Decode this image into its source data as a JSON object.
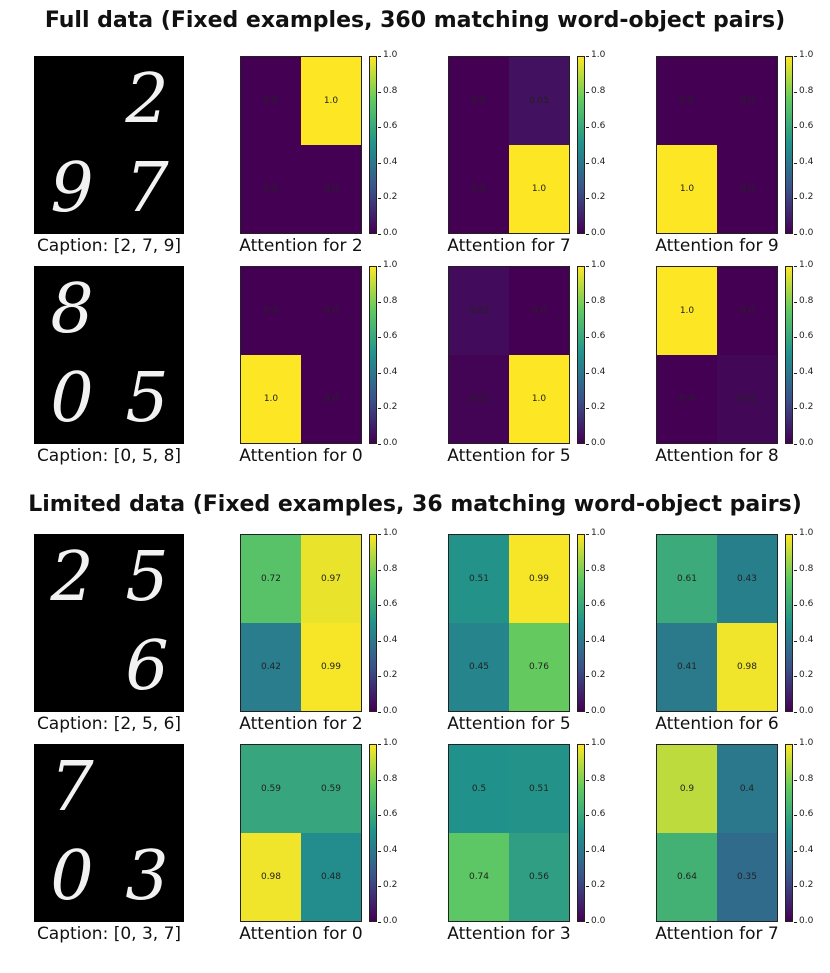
{
  "titles": [
    "Full data (Fixed examples, 360 matching word-object pairs)",
    "Limited data (Fixed examples, 36 matching word-object pairs)"
  ],
  "colorbar_ticks": [
    "1.0",
    "0.8",
    "0.6",
    "0.4",
    "0.2",
    "0.0"
  ],
  "chart_data": [
    {
      "type": "heatmap",
      "rows": [
        {
          "caption": "Caption: [2, 7, 9]",
          "digits": [
            [
              "",
              "2"
            ],
            [
              "9",
              "7"
            ]
          ],
          "maps": [
            {
              "title": "Attention for 2",
              "values": [
                [
                  0.0,
                  1.0
                ],
                [
                  0.0,
                  0.0
                ]
              ],
              "labels": [
                [
                  "0.0",
                  "1.0"
                ],
                [
                  "0.0",
                  "0.0"
                ]
              ]
            },
            {
              "title": "Attention for 7",
              "values": [
                [
                  0.0,
                  0.05
                ],
                [
                  0.0,
                  1.0
                ]
              ],
              "labels": [
                [
                  "0.0",
                  "0.05"
                ],
                [
                  "0.0",
                  "1.0"
                ]
              ]
            },
            {
              "title": "Attention for 9",
              "values": [
                [
                  0.0,
                  0.0
                ],
                [
                  1.0,
                  0.0
                ]
              ],
              "labels": [
                [
                  "0.0",
                  "0.0"
                ],
                [
                  "1.0",
                  "0.0"
                ]
              ]
            }
          ]
        },
        {
          "caption": "Caption: [0, 5, 8]",
          "digits": [
            [
              "8",
              ""
            ],
            [
              "0",
              "5"
            ]
          ],
          "maps": [
            {
              "title": "Attention for 0",
              "values": [
                [
                  0.0,
                  0.0
                ],
                [
                  1.0,
                  0.0
                ]
              ],
              "labels": [
                [
                  "0.0",
                  "0.0"
                ],
                [
                  "1.0",
                  "0.0"
                ]
              ]
            },
            {
              "title": "Attention for 5",
              "values": [
                [
                  0.03,
                  0.0
                ],
                [
                  0.01,
                  1.0
                ]
              ],
              "labels": [
                [
                  "0.03",
                  "0.0"
                ],
                [
                  "0.01",
                  "1.0"
                ]
              ]
            },
            {
              "title": "Attention for 8",
              "values": [
                [
                  1.0,
                  0.0
                ],
                [
                  0.0,
                  0.02
                ]
              ],
              "labels": [
                [
                  "1.0",
                  "0.0"
                ],
                [
                  "0.0",
                  "0.02"
                ]
              ]
            }
          ]
        }
      ]
    },
    {
      "type": "heatmap",
      "rows": [
        {
          "caption": "Caption: [2, 5, 6]",
          "digits": [
            [
              "2",
              "5"
            ],
            [
              "",
              "6"
            ]
          ],
          "maps": [
            {
              "title": "Attention for 2",
              "values": [
                [
                  0.72,
                  0.97
                ],
                [
                  0.42,
                  0.99
                ]
              ],
              "labels": [
                [
                  "0.72",
                  "0.97"
                ],
                [
                  "0.42",
                  "0.99"
                ]
              ]
            },
            {
              "title": "Attention for 5",
              "values": [
                [
                  0.51,
                  0.99
                ],
                [
                  0.45,
                  0.76
                ]
              ],
              "labels": [
                [
                  "0.51",
                  "0.99"
                ],
                [
                  "0.45",
                  "0.76"
                ]
              ]
            },
            {
              "title": "Attention for 6",
              "values": [
                [
                  0.61,
                  0.43
                ],
                [
                  0.41,
                  0.98
                ]
              ],
              "labels": [
                [
                  "0.61",
                  "0.43"
                ],
                [
                  "0.41",
                  "0.98"
                ]
              ]
            }
          ]
        },
        {
          "caption": "Caption: [0, 3, 7]",
          "digits": [
            [
              "7",
              ""
            ],
            [
              "0",
              "3"
            ]
          ],
          "maps": [
            {
              "title": "Attention for 0",
              "values": [
                [
                  0.59,
                  0.59
                ],
                [
                  0.98,
                  0.48
                ]
              ],
              "labels": [
                [
                  "0.59",
                  "0.59"
                ],
                [
                  "0.98",
                  "0.48"
                ]
              ]
            },
            {
              "title": "Attention for 3",
              "values": [
                [
                  0.5,
                  0.51
                ],
                [
                  0.74,
                  0.56
                ]
              ],
              "labels": [
                [
                  "0.5",
                  "0.51"
                ],
                [
                  "0.74",
                  "0.56"
                ]
              ]
            },
            {
              "title": "Attention for 7",
              "values": [
                [
                  0.9,
                  0.4
                ],
                [
                  0.64,
                  0.35
                ]
              ],
              "labels": [
                [
                  "0.9",
                  "0.4"
                ],
                [
                  "0.64",
                  "0.35"
                ]
              ]
            }
          ]
        }
      ]
    }
  ]
}
